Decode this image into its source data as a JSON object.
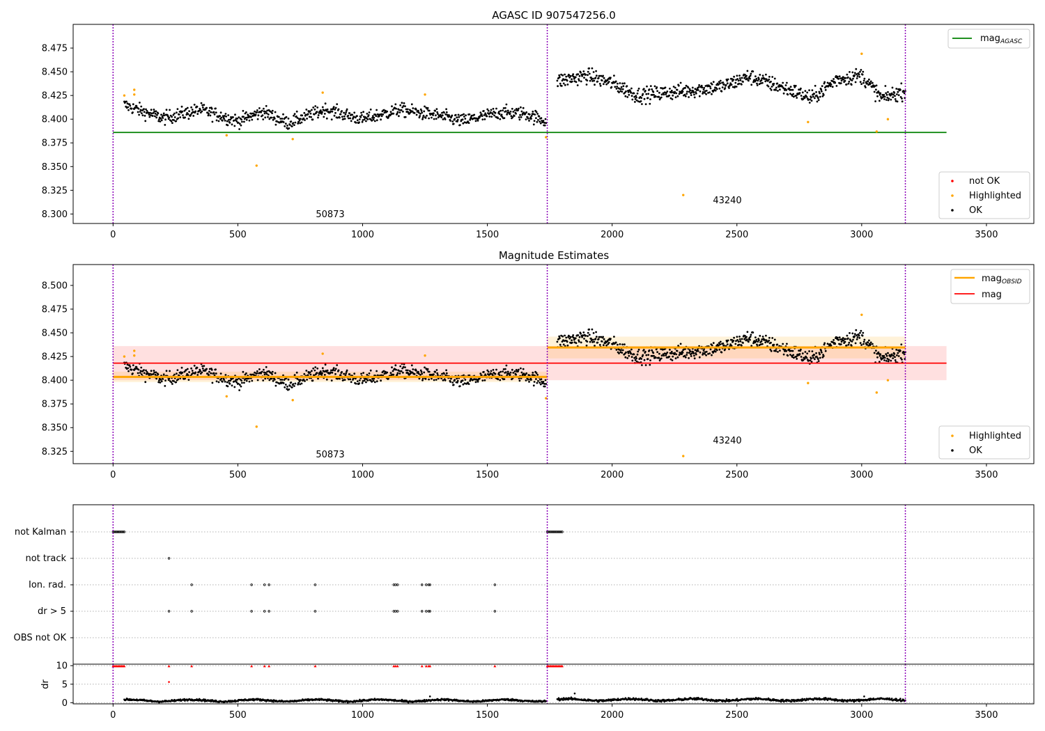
{
  "chart_data": [
    {
      "type": "scatter",
      "title": "AGASC ID 907547256.0",
      "xlim": [
        -160,
        3690
      ],
      "ylim": [
        8.29,
        8.5
      ],
      "xticks": [
        0,
        500,
        1000,
        1500,
        2000,
        2500,
        3000,
        3500
      ],
      "yticks": [
        8.3,
        8.325,
        8.35,
        8.375,
        8.4,
        8.425,
        8.45,
        8.475
      ],
      "ytick_labels": [
        "8.300",
        "8.325",
        "8.350",
        "8.375",
        "8.400",
        "8.425",
        "8.450",
        "8.475"
      ],
      "grid": false,
      "obs_boundaries": [
        0,
        1740,
        3175
      ],
      "annotations": [
        {
          "text": "50873",
          "x": 870,
          "y": 8.2995
        },
        {
          "text": "43240",
          "x": 2460,
          "y": 8.314
        }
      ],
      "lines": [
        {
          "name": "mag_AGASC",
          "color": "#008000",
          "x": [
            0,
            3340
          ],
          "y": [
            8.386,
            8.386
          ]
        }
      ],
      "legends": [
        {
          "placement": "upper right",
          "entries": [
            {
              "label": "mag",
              "sub": "AGASC",
              "kind": "line",
              "color": "#008000"
            }
          ]
        },
        {
          "placement": "lower right",
          "entries": [
            {
              "label": "not OK",
              "kind": "point",
              "color": "#ff0000"
            },
            {
              "label": "Highlighted",
              "kind": "point",
              "color": "#ffa500"
            },
            {
              "label": "OK",
              "kind": "point",
              "color": "#000000"
            }
          ]
        }
      ],
      "series": [
        {
          "name": "OK",
          "color": "#000000",
          "segments": [
            {
              "x0": 45,
              "x1": 1735,
              "knots": [
                [
                  45,
                  8.415
                ],
                [
                  200,
                  8.401
                ],
                [
                  350,
                  8.41
                ],
                [
                  500,
                  8.398
                ],
                [
                  600,
                  8.408
                ],
                [
                  700,
                  8.396
                ],
                [
                  850,
                  8.41
                ],
                [
                  1000,
                  8.4
                ],
                [
                  1150,
                  8.41
                ],
                [
                  1300,
                  8.404
                ],
                [
                  1400,
                  8.398
                ],
                [
                  1550,
                  8.407
                ],
                [
                  1650,
                  8.406
                ],
                [
                  1735,
                  8.398
                ]
              ],
              "noise": 0.007,
              "n": 800
            },
            {
              "x0": 1780,
              "x1": 3175,
              "knots": [
                [
                  1780,
                  8.44
                ],
                [
                  1900,
                  8.446
                ],
                [
                  2000,
                  8.438
                ],
                [
                  2100,
                  8.425
                ],
                [
                  2300,
                  8.43
                ],
                [
                  2450,
                  8.435
                ],
                [
                  2550,
                  8.445
                ],
                [
                  2700,
                  8.432
                ],
                [
                  2800,
                  8.422
                ],
                [
                  2900,
                  8.442
                ],
                [
                  3000,
                  8.446
                ],
                [
                  3080,
                  8.422
                ],
                [
                  3175,
                  8.43
                ]
              ],
              "noise": 0.008,
              "n": 700
            }
          ]
        },
        {
          "name": "Highlighted",
          "color": "#ffa500",
          "points": [
            [
              45,
              8.425
            ],
            [
              85,
              8.431
            ],
            [
              85,
              8.426
            ],
            [
              455,
              8.383
            ],
            [
              575,
              8.351
            ],
            [
              720,
              8.379
            ],
            [
              840,
              8.428
            ],
            [
              1250,
              8.426
            ],
            [
              1735,
              8.381
            ],
            [
              2285,
              8.32
            ],
            [
              2785,
              8.397
            ],
            [
              3000,
              8.469
            ],
            [
              3060,
              8.387
            ],
            [
              3105,
              8.4
            ]
          ]
        }
      ]
    },
    {
      "type": "scatter",
      "title": "Magnitude Estimates",
      "xlim": [
        -160,
        3690
      ],
      "ylim": [
        8.312,
        8.522
      ],
      "xticks": [
        0,
        500,
        1000,
        1500,
        2000,
        2500,
        3000,
        3500
      ],
      "yticks": [
        8.325,
        8.35,
        8.375,
        8.4,
        8.425,
        8.45,
        8.475,
        8.5
      ],
      "ytick_labels": [
        "8.325",
        "8.350",
        "8.375",
        "8.400",
        "8.425",
        "8.450",
        "8.475",
        "8.500"
      ],
      "grid": false,
      "obs_boundaries": [
        0,
        1740,
        3175
      ],
      "annotations": [
        {
          "text": "50873",
          "x": 870,
          "y": 8.3195
        },
        {
          "text": "43240",
          "x": 2460,
          "y": 8.334
        }
      ],
      "bands": [
        {
          "x0": 0,
          "x1": 3340,
          "y0": 8.4,
          "y1": 8.436,
          "color": "#ff0000",
          "opacity": 0.12
        },
        {
          "x0": 0,
          "x1": 1740,
          "y0": 8.398,
          "y1": 8.409,
          "color": "#ffa500",
          "opacity": 0.15
        },
        {
          "x0": 1740,
          "x1": 3175,
          "y0": 8.423,
          "y1": 8.446,
          "color": "#ffa500",
          "opacity": 0.15
        }
      ],
      "lines": [
        {
          "name": "mag_OBSID",
          "color": "#ffa500",
          "x": [
            0,
            1740
          ],
          "y": [
            8.4035,
            8.4035
          ]
        },
        {
          "name": "mag_OBSID",
          "color": "#ffa500",
          "x": [
            1740,
            3175
          ],
          "y": [
            8.4345,
            8.4345
          ]
        },
        {
          "name": "mag",
          "color": "#ff0000",
          "x": [
            0,
            3340
          ],
          "y": [
            8.418,
            8.418
          ]
        }
      ],
      "legends": [
        {
          "placement": "upper right",
          "entries": [
            {
              "label": "mag",
              "sub": "OBSID",
              "kind": "line",
              "color": "#ffa500"
            },
            {
              "label": "mag",
              "kind": "line",
              "color": "#ff0000"
            }
          ]
        },
        {
          "placement": "lower right",
          "entries": [
            {
              "label": "Highlighted",
              "kind": "point",
              "color": "#ffa500"
            },
            {
              "label": "OK",
              "kind": "point",
              "color": "#000000"
            }
          ]
        }
      ],
      "series": [
        {
          "name": "OK",
          "color": "#000000",
          "ref": 0
        },
        {
          "name": "Highlighted",
          "color": "#ffa500",
          "ref": 0
        }
      ]
    },
    {
      "type": "scatter",
      "xlim": [
        -160,
        3690
      ],
      "xticks": [
        0,
        500,
        1000,
        1500,
        2000,
        2500,
        3000,
        3500
      ],
      "obs_boundaries": [
        0,
        1740,
        3175
      ],
      "flag_labels": [
        "not Kalman",
        "not track",
        "Ion. rad.",
        "dr > 5",
        "OBS not OK"
      ],
      "flags": [
        {
          "label": "not Kalman",
          "x": [
            0,
            5,
            10,
            15,
            20,
            25,
            30,
            35,
            40,
            45,
            1740,
            1745,
            1750,
            1755,
            1760,
            1765,
            1770,
            1775,
            1780,
            1785,
            1790,
            1795,
            1800
          ]
        },
        {
          "label": "not track",
          "x": [
            224
          ]
        },
        {
          "label": "Ion. rad.",
          "x": [
            315,
            555,
            607,
            625,
            810,
            1125,
            1132,
            1140,
            1238,
            1255,
            1265,
            1270,
            1530
          ]
        },
        {
          "label": "dr > 5",
          "x": [
            224,
            315,
            555,
            607,
            625,
            810,
            1125,
            1132,
            1140,
            1238,
            1255,
            1265,
            1270,
            1530
          ]
        },
        {
          "label": "OBS not OK",
          "x": []
        }
      ]
    },
    {
      "type": "scatter",
      "ylabel": "dr",
      "xlim": [
        -160,
        3690
      ],
      "ylim": [
        -0.3,
        10.4
      ],
      "xticks": [
        0,
        500,
        1000,
        1500,
        2000,
        2500,
        3000,
        3500
      ],
      "yticks": [
        0,
        5,
        10
      ],
      "obs_boundaries": [
        0,
        1740,
        3175
      ],
      "series": [
        {
          "name": "dr (clipped)",
          "color": "#ff0000",
          "marker": "triangle",
          "y": 9.85,
          "x": [
            0,
            5,
            10,
            15,
            20,
            25,
            30,
            35,
            40,
            45,
            224,
            315,
            555,
            607,
            625,
            810,
            1125,
            1132,
            1140,
            1238,
            1255,
            1265,
            1270,
            1530,
            1740,
            1745,
            1750,
            1755,
            1760,
            1765,
            1770,
            1775,
            1780,
            1785,
            1790,
            1795,
            1800
          ]
        },
        {
          "name": "dr outlier",
          "color": "#ff0000",
          "points": [
            [
              224,
              5.6
            ]
          ]
        },
        {
          "name": "dr",
          "color": "#000000",
          "segments": [
            {
              "x0": 45,
              "x1": 1735,
              "base": 0.6,
              "noise": 0.25,
              "n": 850
            },
            {
              "x0": 1780,
              "x1": 3175,
              "base": 0.8,
              "noise": 0.3,
              "n": 700
            }
          ],
          "points": [
            [
              1850,
              2.5
            ],
            [
              1270,
              1.7
            ],
            [
              3010,
              1.7
            ]
          ]
        }
      ]
    }
  ]
}
